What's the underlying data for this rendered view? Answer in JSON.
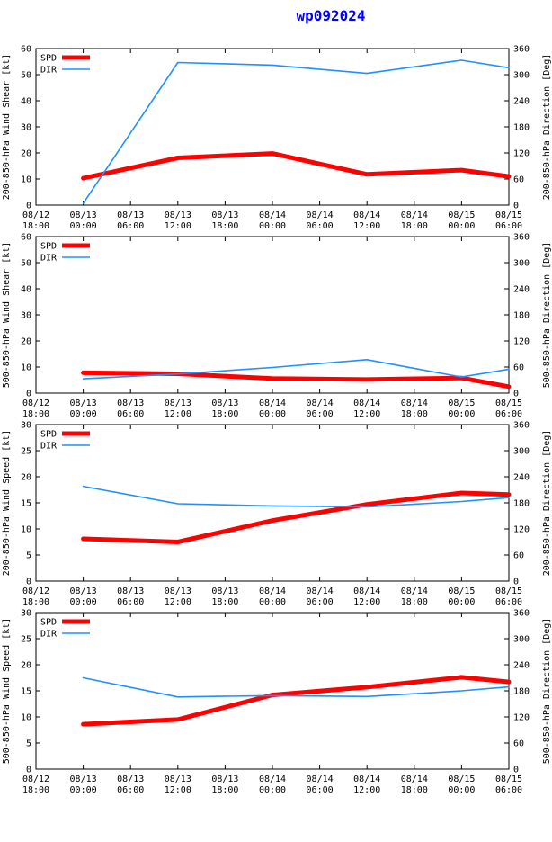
{
  "title": "wp092024",
  "colors": {
    "spd": "#ff0000",
    "dir": "#1e90ff",
    "axis": "#000000"
  },
  "x_ticks": [
    [
      "08/12",
      "18:00"
    ],
    [
      "08/13",
      "00:00"
    ],
    [
      "08/13",
      "06:00"
    ],
    [
      "08/13",
      "12:00"
    ],
    [
      "08/13",
      "18:00"
    ],
    [
      "08/14",
      "00:00"
    ],
    [
      "08/14",
      "06:00"
    ],
    [
      "08/14",
      "12:00"
    ],
    [
      "08/14",
      "18:00"
    ],
    [
      "08/15",
      "00:00"
    ],
    [
      "08/15",
      "06:00"
    ]
  ],
  "chart_data": [
    {
      "type": "line",
      "ylabel_left": "200-850-hPa Wind Shear [kt]",
      "ylabel_right": "200-850-hPa Direction [Deg]",
      "ylim_left": [
        0,
        60
      ],
      "yticks_left": [
        0,
        10,
        20,
        30,
        40,
        50,
        60
      ],
      "ylim_right": [
        0,
        360
      ],
      "yticks_right": [
        0,
        60,
        120,
        180,
        240,
        300,
        360
      ],
      "xlim_hours": [
        0,
        60
      ],
      "legend": [
        "SPD",
        "DIR"
      ],
      "series": [
        {
          "name": "SPD",
          "axis": "left",
          "x_hours": [
            6,
            18,
            30,
            42,
            54,
            60
          ],
          "values": [
            10.3,
            18.1,
            19.8,
            11.8,
            13.4,
            11.0
          ]
        },
        {
          "name": "DIR",
          "axis": "right",
          "x_hours": [
            6,
            18,
            30,
            42,
            54,
            60
          ],
          "values": [
            4,
            328,
            322,
            303,
            333,
            316
          ]
        }
      ]
    },
    {
      "type": "line",
      "ylabel_left": "500-850-hPa Wind Shear [kt]",
      "ylabel_right": "500-850-hPa Direction [Deg]",
      "ylim_left": [
        0,
        60
      ],
      "yticks_left": [
        0,
        10,
        20,
        30,
        40,
        50,
        60
      ],
      "ylim_right": [
        0,
        360
      ],
      "yticks_right": [
        0,
        60,
        120,
        180,
        240,
        300,
        360
      ],
      "xlim_hours": [
        0,
        60
      ],
      "legend": [
        "SPD",
        "DIR"
      ],
      "series": [
        {
          "name": "SPD",
          "axis": "left",
          "x_hours": [
            6,
            18,
            30,
            42,
            54,
            60
          ],
          "values": [
            7.8,
            7.4,
            5.6,
            5.2,
            5.8,
            2.5
          ]
        },
        {
          "name": "DIR",
          "axis": "right",
          "x_hours": [
            6,
            18,
            30,
            42,
            54,
            60
          ],
          "values": [
            33,
            44,
            59,
            77,
            37,
            55
          ]
        }
      ]
    },
    {
      "type": "line",
      "ylabel_left": "200-850-hPa Wind Speed [kt]",
      "ylabel_right": "200-850-hPa Direction [Deg]",
      "ylim_left": [
        0,
        30
      ],
      "yticks_left": [
        0,
        5,
        10,
        15,
        20,
        25,
        30
      ],
      "ylim_right": [
        0,
        360
      ],
      "yticks_right": [
        0,
        60,
        120,
        180,
        240,
        300,
        360
      ],
      "xlim_hours": [
        0,
        60
      ],
      "legend": [
        "SPD",
        "DIR"
      ],
      "series": [
        {
          "name": "SPD",
          "axis": "left",
          "x_hours": [
            6,
            18,
            30,
            42,
            54,
            60
          ],
          "values": [
            8.1,
            7.5,
            11.6,
            14.7,
            16.9,
            16.6
          ]
        },
        {
          "name": "DIR",
          "axis": "right",
          "x_hours": [
            6,
            18,
            30,
            42,
            54,
            60
          ],
          "values": [
            218,
            178,
            173,
            171,
            183,
            192
          ]
        }
      ]
    },
    {
      "type": "line",
      "ylabel_left": "500-850-hPa Wind Speed [kt]",
      "ylabel_right": "500-850-hPa Direction [Deg]",
      "ylim_left": [
        0,
        30
      ],
      "yticks_left": [
        0,
        5,
        10,
        15,
        20,
        25,
        30
      ],
      "ylim_right": [
        0,
        360
      ],
      "yticks_right": [
        0,
        60,
        120,
        180,
        240,
        300,
        360
      ],
      "xlim_hours": [
        0,
        60
      ],
      "legend": [
        "SPD",
        "DIR"
      ],
      "series": [
        {
          "name": "SPD",
          "axis": "left",
          "x_hours": [
            6,
            18,
            30,
            42,
            54,
            60
          ],
          "values": [
            8.6,
            9.5,
            14.2,
            15.7,
            17.6,
            16.7
          ]
        },
        {
          "name": "DIR",
          "axis": "right",
          "x_hours": [
            6,
            18,
            30,
            42,
            54,
            60
          ],
          "values": [
            210,
            166,
            169,
            167,
            180,
            189
          ]
        }
      ]
    }
  ]
}
